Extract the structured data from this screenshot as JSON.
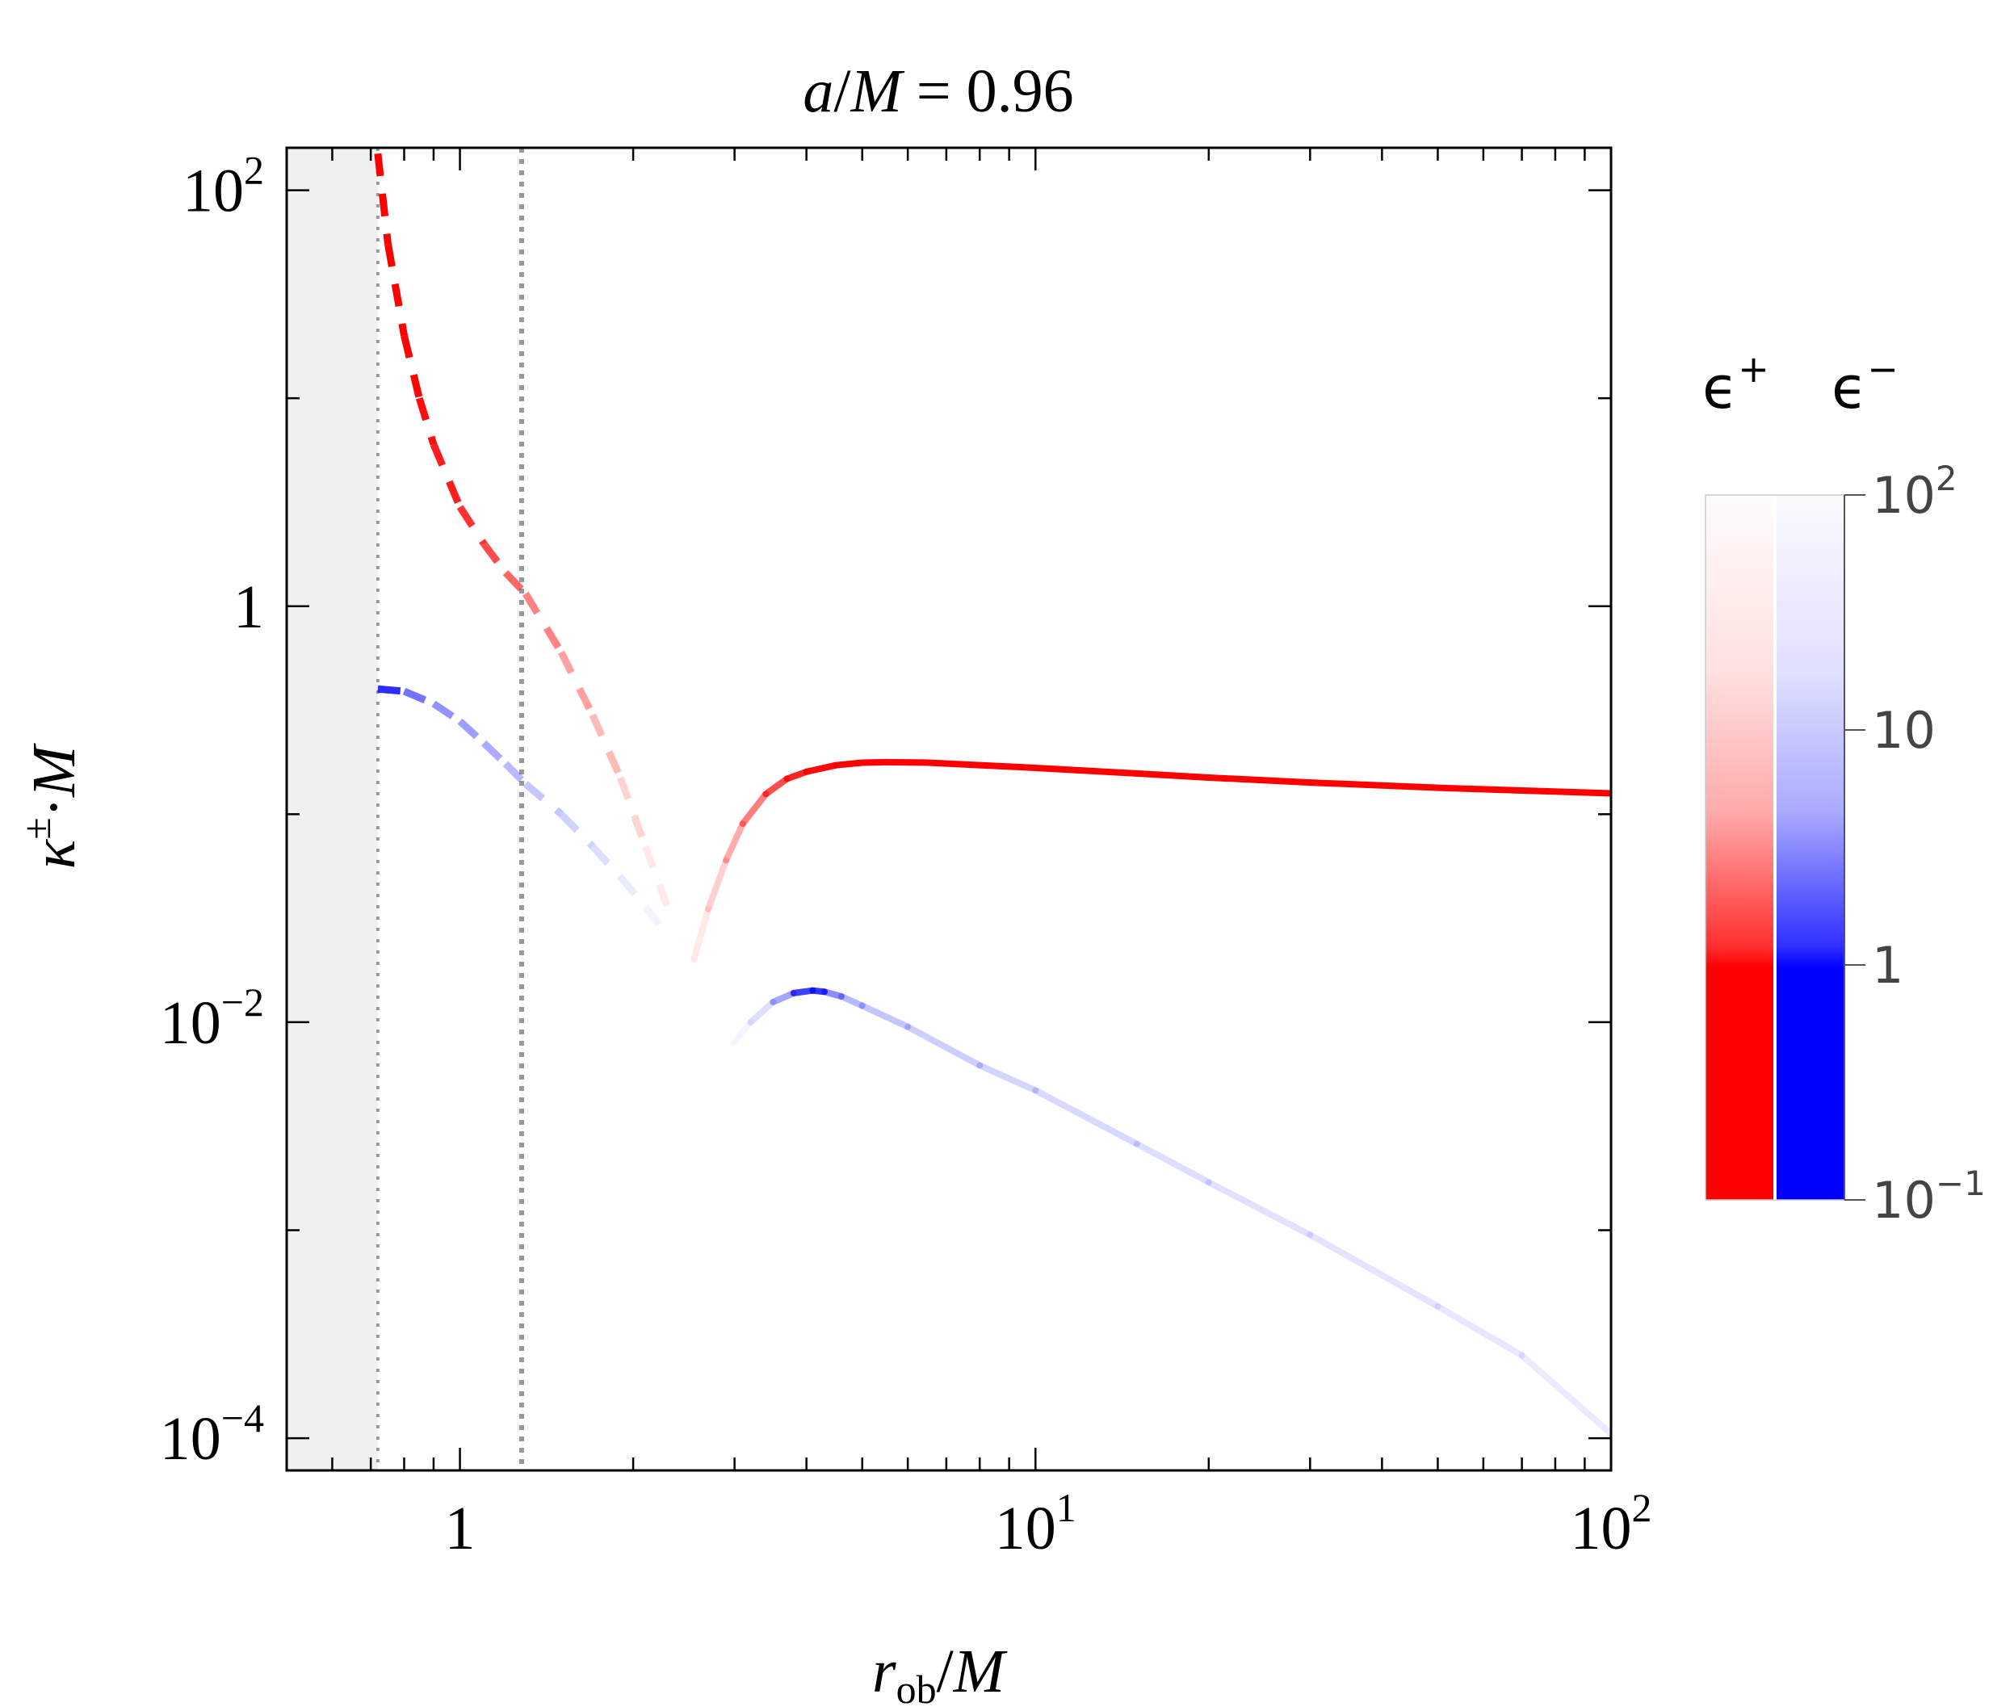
{
  "chart_data": {
    "type": "line",
    "title": {
      "a": "a",
      "slash": "/",
      "M": "M",
      "eq": "= 0.96"
    },
    "xlabel": {
      "r": "r",
      "sub": "ob",
      "slash": "/",
      "M": "M"
    },
    "ylabel": {
      "kappa": "κ",
      "sup": "±",
      "dot": "·",
      "M": "M"
    },
    "x_scale": "log",
    "y_scale": "log",
    "xlim": [
      0.5,
      100
    ],
    "ylim": [
      7e-05,
      160
    ],
    "x_ticks": [
      {
        "value": 1,
        "base": "1",
        "exp": ""
      },
      {
        "value": 10,
        "base": "10",
        "exp": "1"
      },
      {
        "value": 100,
        "base": "10",
        "exp": "2"
      }
    ],
    "y_ticks": [
      {
        "value": 0.0001,
        "base": "10",
        "exp": "−4"
      },
      {
        "value": 0.01,
        "base": "10",
        "exp": "−2"
      },
      {
        "value": 1,
        "base": "1",
        "exp": ""
      },
      {
        "value": 100,
        "base": "10",
        "exp": "2"
      }
    ],
    "shaded_region_x": [
      0.5,
      0.72
    ],
    "vertical_lines_x": [
      0.72,
      1.28
    ],
    "series": [
      {
        "color": "#ff0000",
        "style": "dashed",
        "x": [
          0.72,
          0.75,
          0.8,
          0.85,
          0.9,
          1.0,
          1.1,
          1.2,
          1.3,
          1.5,
          1.7,
          1.9,
          2.1,
          2.3
        ],
        "y": [
          150,
          55,
          20,
          10,
          6.0,
          3.0,
          2.0,
          1.45,
          1.15,
          0.6,
          0.3,
          0.15,
          0.07,
          0.035
        ],
        "alpha": [
          1,
          1,
          1,
          0.97,
          0.93,
          0.85,
          0.75,
          0.65,
          0.55,
          0.42,
          0.32,
          0.22,
          0.12,
          0.05
        ]
      },
      {
        "color": "#0000ff",
        "style": "dashed",
        "x": [
          0.72,
          0.8,
          0.9,
          1.0,
          1.1,
          1.2,
          1.3,
          1.5,
          1.7,
          1.9,
          2.1,
          2.3
        ],
        "y": [
          0.4,
          0.39,
          0.34,
          0.28,
          0.22,
          0.175,
          0.14,
          0.1,
          0.07,
          0.05,
          0.036,
          0.026
        ],
        "alpha": [
          1,
          0.65,
          0.45,
          0.4,
          0.35,
          0.3,
          0.25,
          0.2,
          0.15,
          0.1,
          0.06,
          0.03
        ]
      },
      {
        "color": "#ff0000",
        "style": "solid",
        "x": [
          2.55,
          2.7,
          2.9,
          3.1,
          3.4,
          3.7,
          4.0,
          4.5,
          5.0,
          5.5,
          6.5,
          8,
          10,
          15,
          20,
          30,
          50,
          70,
          100
        ],
        "y": [
          0.02,
          0.035,
          0.06,
          0.09,
          0.125,
          0.148,
          0.16,
          0.172,
          0.177,
          0.178,
          0.177,
          0.172,
          0.167,
          0.157,
          0.15,
          0.142,
          0.134,
          0.13,
          0.126
        ],
        "alpha": [
          0.05,
          0.12,
          0.25,
          0.4,
          0.6,
          0.8,
          0.92,
          1,
          1,
          1,
          1,
          1,
          1,
          1,
          1,
          1,
          1,
          1,
          1
        ]
      },
      {
        "color": "#0000ff",
        "style": "solid",
        "x": [
          3.0,
          3.2,
          3.5,
          3.8,
          4.1,
          4.3,
          4.6,
          5.0,
          6.0,
          8,
          10,
          15,
          20,
          30,
          50,
          70,
          100
        ],
        "y": [
          0.008,
          0.01,
          0.0125,
          0.0138,
          0.0142,
          0.014,
          0.0133,
          0.012,
          0.0095,
          0.0062,
          0.0047,
          0.0026,
          0.0017,
          0.00095,
          0.00043,
          0.00025,
          0.000105
        ],
        "alpha": [
          0.02,
          0.06,
          0.2,
          0.5,
          1,
          0.6,
          0.3,
          0.25,
          0.2,
          0.18,
          0.16,
          0.14,
          0.12,
          0.11,
          0.1,
          0.09,
          0.07
        ]
      }
    ],
    "colorbar": {
      "labels": {
        "eplus": "ϵ",
        "eplus_sup": "+",
        "eminus": "ϵ",
        "eminus_sup": "−"
      },
      "scale": "log",
      "range": [
        0.1,
        100
      ],
      "ticks": [
        {
          "value": 100,
          "base": "10",
          "exp": "2"
        },
        {
          "value": 10,
          "base": "10",
          "exp": ""
        },
        {
          "value": 1,
          "base": "1",
          "exp": ""
        },
        {
          "value": 0.1,
          "base": "10",
          "exp": "−1"
        }
      ],
      "color_plus": "#ff0000",
      "color_minus": "#0000ff"
    }
  }
}
